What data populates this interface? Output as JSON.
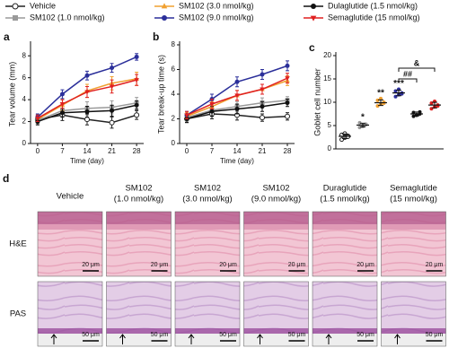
{
  "chart_data": [
    {
      "type": "line",
      "panel": "a",
      "ylabel": "Tear volume (mm)",
      "xlabel": "Time (day)",
      "x": [
        0,
        7,
        14,
        21,
        28
      ],
      "xlim": [
        -2,
        30
      ],
      "xticks": [
        0,
        7,
        14,
        21,
        28
      ],
      "ylim": [
        0,
        9
      ],
      "yticks": [
        0,
        2,
        4,
        6,
        8
      ],
      "series": [
        {
          "name": "Vehicle",
          "color": "#222222",
          "marker": "circle-open",
          "values": [
            2.2,
            2.6,
            2.2,
            1.9,
            2.6
          ],
          "errors": [
            0.4,
            0.5,
            0.5,
            0.5,
            0.4
          ]
        },
        {
          "name": "SM102 (1.0 nmol/kg)",
          "color": "#9a9a9a",
          "marker": "square",
          "values": [
            2.1,
            3.0,
            3.2,
            3.3,
            3.7
          ],
          "errors": [
            0.3,
            0.5,
            0.6,
            0.6,
            0.5
          ]
        },
        {
          "name": "SM102 (3.0 nmol/kg)",
          "color": "#f0a030",
          "marker": "triangle",
          "values": [
            2.2,
            3.5,
            4.8,
            5.5,
            5.9
          ],
          "errors": [
            0.3,
            0.5,
            0.6,
            0.6,
            0.6
          ]
        },
        {
          "name": "SM102 (9.0 nmol/kg)",
          "color": "#2b2f9a",
          "marker": "circle",
          "values": [
            2.4,
            4.5,
            6.2,
            6.9,
            7.9
          ],
          "errors": [
            0.3,
            0.4,
            0.4,
            0.4,
            0.3
          ]
        },
        {
          "name": "Dulaglutide (1.5 nmol/kg)",
          "color": "#111111",
          "marker": "circle",
          "values": [
            2.0,
            2.8,
            2.9,
            3.0,
            3.5
          ],
          "errors": [
            0.3,
            0.4,
            0.5,
            0.5,
            0.4
          ]
        },
        {
          "name": "Semaglutide (15 nmol/kg)",
          "color": "#e02020",
          "marker": "triangle-down",
          "values": [
            2.3,
            3.6,
            4.7,
            5.2,
            5.8
          ],
          "errors": [
            0.3,
            0.4,
            0.5,
            0.6,
            0.5
          ]
        }
      ]
    },
    {
      "type": "line",
      "panel": "b",
      "ylabel": "Tear break-up time (s)",
      "xlabel": "Time (day)",
      "x": [
        0,
        7,
        14,
        21,
        28
      ],
      "xlim": [
        -2,
        30
      ],
      "xticks": [
        0,
        7,
        14,
        21,
        28
      ],
      "ylim": [
        0,
        8
      ],
      "yticks": [
        0,
        2,
        4,
        6,
        8
      ],
      "series": [
        {
          "color": "#222222",
          "marker": "circle-open",
          "values": [
            2.0,
            2.4,
            2.3,
            2.1,
            2.2
          ],
          "errors": [
            0.3,
            0.4,
            0.4,
            0.3,
            0.3
          ]
        },
        {
          "color": "#9a9a9a",
          "marker": "square",
          "values": [
            2.1,
            2.7,
            3.0,
            3.3,
            3.5
          ],
          "errors": [
            0.3,
            0.4,
            0.4,
            0.4,
            0.3
          ]
        },
        {
          "color": "#f0a030",
          "marker": "triangle",
          "values": [
            2.2,
            3.0,
            3.9,
            4.4,
            5.1
          ],
          "errors": [
            0.3,
            0.4,
            0.4,
            0.4,
            0.4
          ]
        },
        {
          "color": "#2b2f9a",
          "marker": "circle",
          "values": [
            2.3,
            3.6,
            5.0,
            5.6,
            6.3
          ],
          "errors": [
            0.3,
            0.4,
            0.4,
            0.4,
            0.4
          ]
        },
        {
          "color": "#111111",
          "marker": "circle",
          "values": [
            2.0,
            2.6,
            2.8,
            3.0,
            3.3
          ],
          "errors": [
            0.3,
            0.4,
            0.4,
            0.4,
            0.3
          ]
        },
        {
          "color": "#e02020",
          "marker": "triangle-down",
          "values": [
            2.3,
            3.2,
            3.9,
            4.4,
            5.3
          ],
          "errors": [
            0.3,
            0.4,
            0.4,
            0.4,
            0.4
          ]
        }
      ]
    },
    {
      "type": "strip",
      "panel": "c",
      "ylabel": "Goblet cell number",
      "ylim": [
        0,
        20
      ],
      "yticks": [
        0,
        5,
        10,
        15,
        20
      ],
      "annotations": [
        "*",
        "**",
        "***",
        "##",
        "&"
      ],
      "series": [
        {
          "color": "#222222",
          "marker": "circle-open",
          "values": [
            2.0,
            2.4,
            2.8,
            3.0,
            3.3,
            2.6
          ],
          "mean": 2.7,
          "sd": 0.5
        },
        {
          "color": "#9a9a9a",
          "marker": "circle",
          "values": [
            4.6,
            5.0,
            5.3,
            5.6,
            4.8,
            5.2
          ],
          "mean": 5.1,
          "sd": 0.4
        },
        {
          "color": "#f0a030",
          "marker": "circle",
          "values": [
            9.2,
            9.6,
            10.0,
            10.4,
            10.8,
            9.8
          ],
          "mean": 9.9,
          "sd": 0.6
        },
        {
          "color": "#2b2f9a",
          "marker": "circle",
          "values": [
            11.2,
            11.6,
            12.0,
            12.4,
            12.8,
            11.8
          ],
          "mean": 12.0,
          "sd": 0.6
        },
        {
          "color": "#111111",
          "marker": "circle",
          "values": [
            7.0,
            7.3,
            7.5,
            7.8,
            7.2,
            7.9
          ],
          "mean": 7.5,
          "sd": 0.4
        },
        {
          "color": "#e02020",
          "marker": "circle",
          "values": [
            8.6,
            9.0,
            9.4,
            9.8,
            10.2,
            9.2
          ],
          "mean": 9.4,
          "sd": 0.6
        }
      ]
    }
  ],
  "panel_d": {
    "letter": "d",
    "columns": [
      [
        "Vehicle"
      ],
      [
        "SM102",
        "(1.0 nmol/kg)"
      ],
      [
        "SM102",
        "(3.0 nmol/kg)"
      ],
      [
        "SM102",
        "(9.0 nmol/kg)"
      ],
      [
        "Duraglutide",
        "(1.5 nmol/kg)"
      ],
      [
        "Semaglutide",
        "(15 nmol/kg)"
      ]
    ],
    "rows": [
      {
        "label": "H&E",
        "scale": "20 μm"
      },
      {
        "label": "PAS",
        "scale": "50 μm"
      }
    ]
  }
}
